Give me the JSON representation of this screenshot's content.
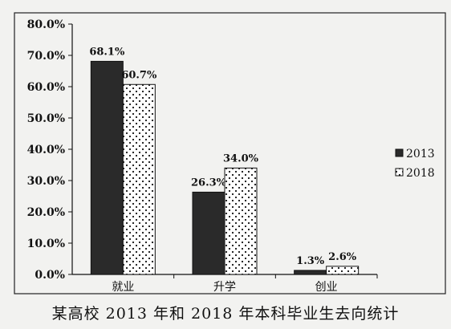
{
  "chart_data": {
    "type": "bar",
    "title": "",
    "caption": "某高校 2013 年和 2018 年本科毕业生去向统计",
    "categories": [
      "就业",
      "升学",
      "创业"
    ],
    "series": [
      {
        "name": "2013",
        "values": [
          68.1,
          26.3,
          1.3
        ],
        "labels": [
          "68.1%",
          "26.3%",
          "1.3%"
        ],
        "color": "#2a2a2a",
        "pattern": "solid"
      },
      {
        "name": "2018",
        "values": [
          60.7,
          34.0,
          2.6
        ],
        "labels": [
          "60.7%",
          "34.0%",
          "2.6%"
        ],
        "color": "#ffffff",
        "pattern": "dotted"
      }
    ],
    "ylim": [
      0,
      80
    ],
    "yticks": [
      "0.0%",
      "10.0%",
      "20.0%",
      "30.0%",
      "40.0%",
      "50.0%",
      "60.0%",
      "70.0%",
      "80.0%"
    ],
    "xlabel": "",
    "ylabel": "",
    "grid": false,
    "legend_position": "right"
  }
}
